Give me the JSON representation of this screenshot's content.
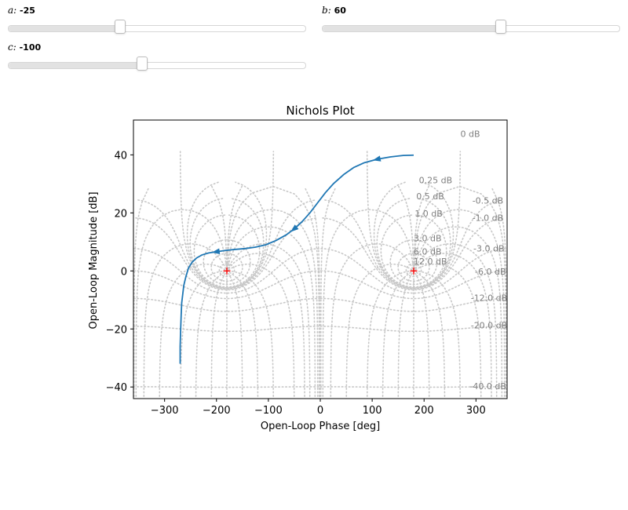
{
  "controls": {
    "sliders": [
      {
        "name": "a",
        "value_text": "-25",
        "fraction": 0.375
      },
      {
        "name": "b",
        "value_text": "60",
        "fraction": 0.6
      },
      {
        "name": "c",
        "value_text": "-100",
        "fraction": 0.45
      }
    ]
  },
  "chart_data": {
    "type": "line",
    "title": "Nichols Plot",
    "xlabel": "Open-Loop Phase [deg]",
    "ylabel": "Open-Loop Magnitude [dB]",
    "xlim": [
      -360,
      360
    ],
    "ylim": [
      -44,
      52
    ],
    "xticks": [
      -300,
      -200,
      -100,
      0,
      100,
      200,
      300
    ],
    "yticks": [
      -40,
      -20,
      0,
      20,
      40
    ],
    "grid": "nichols",
    "series": [
      {
        "color": "#1f77b4",
        "points": [
          [
            -270,
            -32
          ],
          [
            -270,
            -26
          ],
          [
            -269,
            -20
          ],
          [
            -268,
            -15
          ],
          [
            -267,
            -11
          ],
          [
            -265,
            -8
          ],
          [
            -263,
            -5
          ],
          [
            -259,
            -2
          ],
          [
            -254,
            1
          ],
          [
            -247,
            3
          ],
          [
            -238,
            4.5
          ],
          [
            -228,
            5.5
          ],
          [
            -215,
            6.2
          ],
          [
            -200,
            6.6
          ],
          [
            -185,
            7.0
          ],
          [
            -165,
            7.4
          ],
          [
            -145,
            7.7
          ],
          [
            -125,
            8.2
          ],
          [
            -105,
            9.0
          ],
          [
            -85,
            10.5
          ],
          [
            -65,
            12.5
          ],
          [
            -50,
            14.5
          ],
          [
            -35,
            17.0
          ],
          [
            -20,
            20.0
          ],
          [
            -5,
            23.5
          ],
          [
            10,
            27.0
          ],
          [
            25,
            30.0
          ],
          [
            45,
            33.2
          ],
          [
            65,
            35.7
          ],
          [
            85,
            37.3
          ],
          [
            110,
            38.5
          ],
          [
            135,
            39.3
          ],
          [
            160,
            39.8
          ],
          [
            180,
            39.9
          ]
        ],
        "arrows": [
          [
            -200,
            6.6
          ],
          [
            -50,
            14.5
          ],
          [
            110,
            38.5
          ]
        ]
      }
    ],
    "critical_points": [
      [
        -180,
        0
      ],
      [
        180,
        0
      ]
    ],
    "critical_color": "#ff0000",
    "closed_loop_magnitudes_db": [
      0,
      0.25,
      0.5,
      1,
      3,
      6,
      12,
      -0.5,
      -1,
      -3,
      -6,
      -12,
      -20,
      -40
    ],
    "closed_loop_phases_deg": [
      -1,
      -2,
      -5,
      -10,
      -20,
      -30,
      -50,
      -90,
      -120,
      -150,
      -180,
      -210,
      -240,
      -270,
      -310,
      -340,
      -355,
      -359
    ],
    "contour_labels": [
      {
        "text": "0 dB",
        "x": 270,
        "y": 47
      },
      {
        "text": "0.25 dB",
        "x": 190,
        "y": 31
      },
      {
        "text": "0.5 dB",
        "x": 185,
        "y": 25.5
      },
      {
        "text": "1.0 dB",
        "x": 182,
        "y": 19.5
      },
      {
        "text": "3.0 dB",
        "x": 180,
        "y": 11
      },
      {
        "text": "6.0 dB",
        "x": 180,
        "y": 6.5
      },
      {
        "text": "12.0 dB",
        "x": 180,
        "y": 3
      },
      {
        "text": "-0.5 dB",
        "x": 293,
        "y": 24
      },
      {
        "text": "-1.0 dB",
        "x": 293,
        "y": 18
      },
      {
        "text": "-3.0 dB",
        "x": 295,
        "y": 7.5
      },
      {
        "text": "-6.0 dB",
        "x": 298,
        "y": -0.5
      },
      {
        "text": "-12.0 dB",
        "x": 290,
        "y": -9.5
      },
      {
        "text": "-20.0 dB",
        "x": 290,
        "y": -19
      },
      {
        "text": "-40.0 dB",
        "x": 288,
        "y": -40
      }
    ]
  }
}
